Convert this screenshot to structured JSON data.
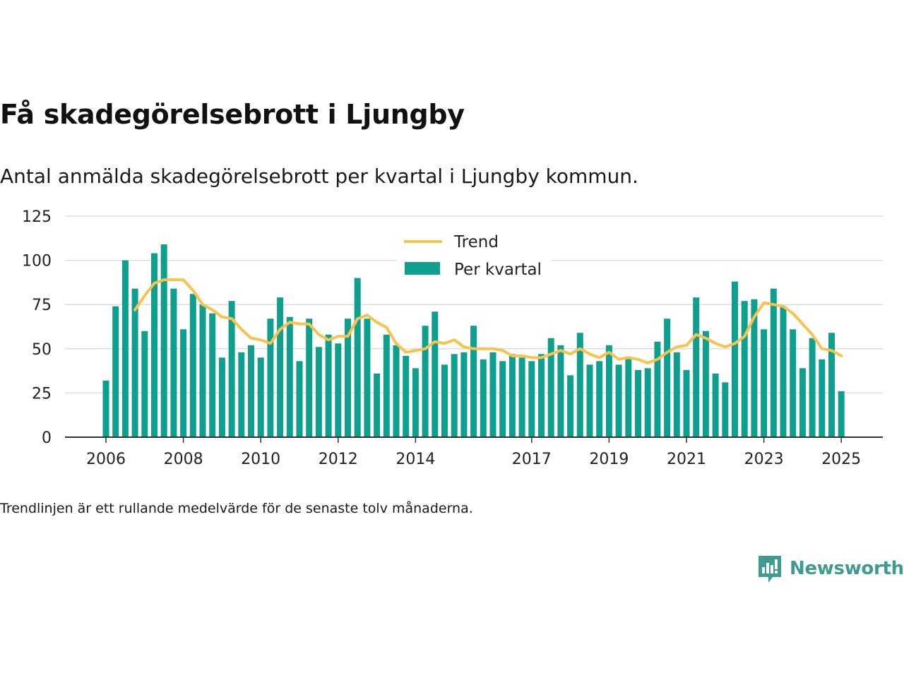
{
  "title": "Få skadegörelsebrott i Ljungby",
  "subtitle": "Antal anmälda skadegörelsebrott per kvartal i Ljungby kommun.",
  "footnote": "Trendlinjen är ett rullande medelvärde för de senaste tolv månaderna.",
  "brand": {
    "name": "Newsworthy",
    "icon": "newsworthy-logo-icon",
    "color": "#3d9b8f"
  },
  "colors": {
    "bars": "#0e9f8f",
    "trend": "#f6c34f",
    "grid": "#dddddd",
    "axis": "#333333"
  },
  "chart_data": {
    "type": "bar",
    "title": "Få skadegörelsebrott i Ljungby",
    "ylim": [
      0,
      125
    ],
    "yticks": [
      0,
      25,
      50,
      75,
      100,
      125
    ],
    "xlim": [
      2006,
      2025.25
    ],
    "xticks": [
      "2006",
      "2008",
      "2010",
      "2012",
      "2014",
      "2017",
      "2019",
      "2021",
      "2023",
      "2025"
    ],
    "grid": true,
    "legend": {
      "position": "top-center",
      "entries": [
        "Trend",
        "Per kvartal"
      ]
    },
    "categories": [
      "2006 Q1",
      "2006 Q2",
      "2006 Q3",
      "2006 Q4",
      "2007 Q1",
      "2007 Q2",
      "2007 Q3",
      "2007 Q4",
      "2008 Q1",
      "2008 Q2",
      "2008 Q3",
      "2008 Q4",
      "2009 Q1",
      "2009 Q2",
      "2009 Q3",
      "2009 Q4",
      "2010 Q1",
      "2010 Q2",
      "2010 Q3",
      "2010 Q4",
      "2011 Q1",
      "2011 Q2",
      "2011 Q3",
      "2011 Q4",
      "2012 Q1",
      "2012 Q2",
      "2012 Q3",
      "2012 Q4",
      "2013 Q1",
      "2013 Q2",
      "2013 Q3",
      "2013 Q4",
      "2014 Q1",
      "2014 Q2",
      "2014 Q3",
      "2014 Q4",
      "2015 Q1",
      "2015 Q2",
      "2015 Q3",
      "2015 Q4",
      "2016 Q1",
      "2016 Q2",
      "2016 Q3",
      "2016 Q4",
      "2017 Q1",
      "2017 Q2",
      "2017 Q3",
      "2017 Q4",
      "2018 Q1",
      "2018 Q2",
      "2018 Q3",
      "2018 Q4",
      "2019 Q1",
      "2019 Q2",
      "2019 Q3",
      "2019 Q4",
      "2020 Q1",
      "2020 Q2",
      "2020 Q3",
      "2020 Q4",
      "2021 Q1",
      "2021 Q2",
      "2021 Q3",
      "2021 Q4",
      "2022 Q1",
      "2022 Q2",
      "2022 Q3",
      "2022 Q4",
      "2023 Q1",
      "2023 Q2",
      "2023 Q3",
      "2023 Q4",
      "2024 Q1",
      "2024 Q2",
      "2024 Q3",
      "2024 Q4",
      "2025 Q1"
    ],
    "series": [
      {
        "name": "Per kvartal",
        "type": "bar",
        "values": [
          32,
          74,
          100,
          84,
          60,
          104,
          109,
          84,
          61,
          81,
          75,
          70,
          45,
          77,
          48,
          52,
          45,
          67,
          79,
          68,
          43,
          67,
          51,
          58,
          53,
          67,
          90,
          67,
          36,
          58,
          52,
          46,
          39,
          63,
          71,
          41,
          47,
          48,
          63,
          44,
          48,
          43,
          47,
          45,
          43,
          47,
          56,
          52,
          35,
          59,
          41,
          43,
          52,
          41,
          45,
          38,
          39,
          54,
          67,
          48,
          38,
          79,
          60,
          36,
          31,
          88,
          77,
          78,
          61,
          84,
          74,
          61,
          39,
          56,
          44,
          59,
          26
        ]
      },
      {
        "name": "Trend",
        "type": "line",
        "values": [
          null,
          null,
          null,
          72,
          80,
          87,
          89,
          89,
          89,
          83,
          75,
          72,
          68,
          67,
          61,
          56,
          55,
          53,
          61,
          65,
          64,
          64,
          58,
          55,
          57,
          57,
          67,
          69,
          65,
          62,
          53,
          48,
          49,
          50,
          54,
          53,
          55,
          51,
          50,
          50,
          50,
          49,
          46,
          46,
          45,
          45,
          47,
          49,
          47,
          50,
          47,
          45,
          48,
          44,
          45,
          44,
          42,
          44,
          48,
          51,
          52,
          58,
          56,
          53,
          51,
          53,
          57,
          68,
          76,
          75,
          74,
          70,
          64,
          58,
          50,
          49,
          46
        ]
      }
    ]
  }
}
